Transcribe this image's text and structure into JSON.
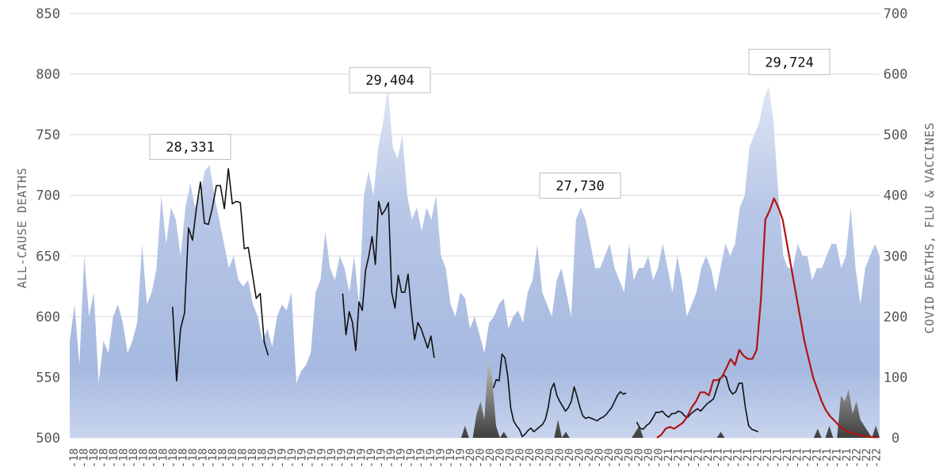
{
  "chart_data": {
    "type": "area+line",
    "title": "",
    "ylabel_left": "ALL-CAUSE DEATHS",
    "ylabel_right": "COVID DEATHS, FLU & VACCINES",
    "ylim_left": [
      500,
      850
    ],
    "ylim_right": [
      0,
      700
    ],
    "yticks_left": [
      500,
      550,
      600,
      650,
      700,
      750,
      800,
      850
    ],
    "yticks_right": [
      0,
      100,
      200,
      300,
      400,
      500,
      600,
      700
    ],
    "grid": true,
    "x_tick_labels": [
      "-18",
      "-18",
      "-18",
      "-18",
      "-18",
      "-18",
      "-18",
      "-18",
      "-18",
      "-18",
      "-18",
      "-18",
      "-18",
      "-18",
      "-18",
      "-18",
      "-18",
      "-18",
      "-18",
      "-18",
      "-19",
      "-19",
      "-19",
      "-19",
      "-19",
      "-19",
      "-19",
      "-19",
      "-19",
      "-19",
      "-19",
      "-19",
      "-19",
      "-19",
      "-19",
      "-19",
      "-19",
      "-19",
      "-19",
      "-19",
      "-20",
      "-20",
      "-20",
      "-20",
      "-20",
      "-20",
      "-20",
      "-20",
      "-20",
      "-20",
      "-20",
      "-20",
      "-20",
      "-20",
      "-20",
      "-20",
      "-20",
      "-20",
      "-20",
      "-20",
      "-21",
      "-21",
      "-21",
      "-21",
      "-21",
      "-21",
      "-21",
      "-21",
      "-21",
      "-21",
      "-21",
      "-21",
      "-21",
      "-21",
      "-21",
      "-21",
      "-21",
      "-21",
      "-21",
      "-22",
      "-22",
      "-22"
    ],
    "annotations": [
      {
        "text": "28,331",
        "x": 0.2,
        "y": 740
      },
      {
        "text": "29,404",
        "x": 0.41,
        "y": 795
      },
      {
        "text": "27,730",
        "x": 0.61,
        "y": 708
      },
      {
        "text": "29,724",
        "x": 0.83,
        "y": 810
      }
    ],
    "series": [
      {
        "kind": "area",
        "axis": "left",
        "color": "#9fb3de",
        "x0": 0.0,
        "x1": 1.0,
        "values": [
          580,
          610,
          560,
          650,
          600,
          620,
          545,
          580,
          570,
          600,
          610,
          595,
          570,
          580,
          595,
          660,
          610,
          620,
          640,
          700,
          660,
          690,
          680,
          650,
          690,
          710,
          690,
          700,
          720,
          725,
          700,
          680,
          660,
          640,
          650,
          630,
          625,
          630,
          610,
          600,
          580,
          590,
          575,
          600,
          610,
          605,
          620,
          545,
          555,
          560,
          570,
          620,
          630,
          670,
          640,
          630,
          650,
          640,
          620,
          650,
          610,
          700,
          720,
          700,
          740,
          760,
          790,
          740,
          730,
          750,
          700,
          680,
          690,
          670,
          690,
          680,
          700,
          650,
          640,
          610,
          600,
          620,
          615,
          590,
          600,
          585,
          570,
          595,
          600,
          610,
          615,
          590,
          600,
          605,
          595,
          620,
          630,
          660,
          620,
          610,
          600,
          630,
          640,
          620,
          600,
          680,
          690,
          680,
          660,
          640,
          640,
          650,
          660,
          640,
          630,
          620,
          660,
          630,
          640,
          640,
          650,
          630,
          640,
          660,
          640,
          620,
          650,
          630,
          600,
          610,
          620,
          640,
          650,
          640,
          620,
          640,
          660,
          650,
          660,
          690,
          700,
          740,
          750,
          760,
          780,
          790,
          760,
          700,
          650,
          640,
          640,
          660,
          650,
          650,
          630,
          640,
          640,
          650,
          660,
          660,
          640,
          650,
          690,
          640,
          610,
          640,
          650,
          660,
          650
        ],
        "name": ""
      },
      {
        "kind": "area",
        "axis": "right",
        "color": "#5a5a5a",
        "x0": 0.0,
        "x1": 1.0,
        "values": [
          0,
          0,
          0,
          0,
          0,
          0,
          0,
          0,
          0,
          0,
          0,
          0,
          0,
          0,
          0,
          0,
          0,
          0,
          0,
          0,
          0,
          0,
          0,
          0,
          0,
          0,
          0,
          0,
          0,
          0,
          0,
          0,
          0,
          0,
          0,
          0,
          0,
          0,
          0,
          0,
          0,
          0,
          0,
          0,
          0,
          0,
          0,
          0,
          0,
          0,
          0,
          0,
          0,
          0,
          0,
          0,
          0,
          0,
          0,
          0,
          0,
          0,
          0,
          0,
          0,
          0,
          0,
          0,
          0,
          0,
          0,
          0,
          0,
          0,
          0,
          0,
          0,
          0,
          0,
          0,
          0,
          0,
          0,
          0,
          0,
          0,
          0,
          0,
          0,
          0,
          0,
          0,
          0,
          0,
          0,
          0,
          0,
          0,
          0,
          0,
          0,
          0,
          20,
          0,
          0,
          40,
          60,
          30,
          130,
          100,
          20,
          0,
          10,
          0,
          0,
          0,
          0,
          0,
          0,
          0,
          0,
          0,
          0,
          0,
          0,
          0,
          30,
          0,
          10,
          0,
          0,
          0,
          0,
          0,
          0,
          0,
          0,
          0,
          0,
          0,
          0,
          0,
          0,
          0,
          0,
          0,
          10,
          20,
          0,
          0,
          0,
          0,
          0,
          0,
          0,
          0,
          0,
          0,
          0,
          0,
          0,
          0,
          0,
          0,
          0,
          0,
          0,
          0,
          10,
          0,
          0,
          0,
          0,
          0,
          0,
          0,
          0,
          0,
          0,
          0,
          0,
          0,
          0,
          0,
          0,
          0,
          0,
          0,
          0,
          0,
          0,
          0,
          0,
          15,
          0,
          0,
          20,
          0,
          0,
          70,
          60,
          80,
          40,
          60,
          30,
          20,
          10,
          0,
          20,
          0
        ],
        "name": ""
      },
      {
        "kind": "line",
        "axis": "left",
        "color": "#111111",
        "segments": [
          {
            "x0": 0.127,
            "x1": 0.245,
            "values": [
              608,
              547,
              590,
              603,
              673,
              663,
              690,
              711,
              677,
              676,
              690,
              708,
              708,
              689,
              722,
              693,
              695,
              694,
              656,
              657,
              636,
              615,
              619,
              579,
              568
            ]
          },
          {
            "x0": 0.337,
            "x1": 0.45,
            "values": [
              619,
              585,
              604,
              595,
              572,
              612,
              605,
              638,
              650,
              666,
              643,
              695,
              684,
              688,
              694,
              620,
              607,
              634,
              620,
              620,
              635,
              605,
              581,
              595,
              590,
              582,
              574,
              584,
              566
            ]
          },
          {
            "x0": 0.523,
            "x1": 0.687,
            "values": [
              541,
              548,
              547,
              569,
              566,
              551,
              525,
              514,
              510,
              507,
              501,
              503,
              506,
              508,
              505,
              507,
              509,
              511,
              515,
              525,
              540,
              545,
              535,
              530,
              526,
              522,
              525,
              530,
              542,
              534,
              525,
              518,
              516,
              517,
              516,
              515,
              514,
              516,
              517,
              519,
              522,
              525,
              530,
              535,
              538,
              536,
              537
            ]
          },
          {
            "x0": 0.7,
            "x1": 0.85,
            "values": [
              513,
              508,
              507,
              510,
              512,
              516,
              521,
              521,
              522,
              519,
              517,
              520,
              520,
              522,
              521,
              518,
              517,
              520,
              522,
              524,
              522,
              525,
              528,
              530,
              532,
              540,
              548,
              552,
              550,
              540,
              536,
              538,
              545,
              545,
              525,
              510,
              507,
              506,
              505
            ]
          }
        ],
        "name": ""
      },
      {
        "kind": "line",
        "axis": "right",
        "color": "#b01414",
        "x0": 0.725,
        "x1": 0.998,
        "values": [
          0,
          5,
          15,
          18,
          15,
          20,
          25,
          35,
          50,
          60,
          75,
          75,
          70,
          95,
          95,
          100,
          115,
          130,
          120,
          145,
          135,
          130,
          130,
          145,
          230,
          360,
          375,
          395,
          380,
          360,
          320,
          280,
          240,
          200,
          160,
          130,
          100,
          80,
          60,
          45,
          35,
          28,
          20,
          15,
          10,
          8,
          6,
          4,
          3,
          2,
          1,
          1
        ]
      }
    ]
  }
}
